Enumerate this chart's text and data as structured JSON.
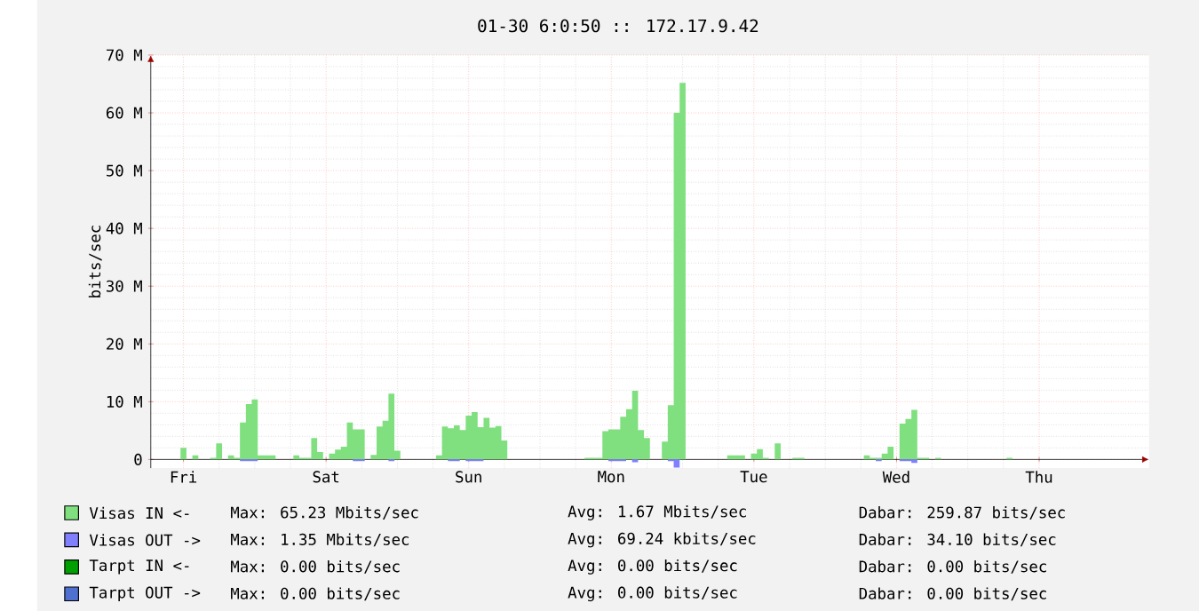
{
  "chart_data": {
    "type": "area",
    "title": "01-30 6:0:50 :: 172.17.9.42",
    "ylabel": "bits/sec",
    "categories": [
      null,
      null,
      null,
      null,
      null,
      "Fri",
      null,
      null,
      null,
      null,
      null,
      null,
      null,
      null,
      null,
      null,
      null,
      null,
      null,
      null,
      null,
      null,
      null,
      null,
      null,
      null,
      null,
      null,
      null,
      "Sat",
      null,
      null,
      null,
      null,
      null,
      null,
      null,
      null,
      null,
      null,
      null,
      null,
      null,
      null,
      null,
      null,
      null,
      null,
      null,
      null,
      null,
      null,
      null,
      "Sun",
      null,
      null,
      null,
      null,
      null,
      null,
      null,
      null,
      null,
      null,
      null,
      null,
      null,
      null,
      null,
      null,
      null,
      null,
      null,
      null,
      null,
      null,
      null,
      "Mon",
      null,
      null,
      null,
      null,
      null,
      null,
      null,
      null,
      null,
      null,
      null,
      null,
      null,
      null,
      null,
      null,
      null,
      null,
      null,
      null,
      null,
      null,
      null,
      "Tue",
      null,
      null,
      null,
      null,
      null,
      null,
      null,
      null,
      null,
      null,
      null,
      null,
      null,
      null,
      null,
      null,
      null,
      null,
      null,
      null,
      null,
      null,
      null,
      "Wed",
      null,
      null,
      null,
      null,
      null,
      null,
      null,
      null,
      null,
      null,
      null,
      null,
      null,
      null,
      null,
      null,
      null,
      null,
      null,
      null,
      null,
      null,
      null,
      "Thu",
      null,
      null,
      null,
      null,
      null,
      null,
      null,
      null,
      null,
      null,
      null,
      null,
      null,
      null,
      null,
      null,
      null,
      null
    ],
    "ylim": [
      -1.5,
      70
    ],
    "yticks": [
      0,
      {
        "value": 10,
        "label": "10 M"
      },
      {
        "value": 20,
        "label": "20 M"
      },
      {
        "value": 30,
        "label": "30 M"
      },
      {
        "value": 40,
        "label": "40 M"
      },
      {
        "value": 50,
        "label": "50 M"
      },
      {
        "value": 60,
        "label": "60 M"
      },
      {
        "value": 70,
        "label": "70 M"
      }
    ],
    "grid": true,
    "legend": "bottom",
    "series": [
      {
        "name": "Visas IN  <-",
        "color": "#80e080",
        "values": [
          0,
          0,
          0,
          0,
          0,
          2.0,
          0,
          0.7,
          0,
          0,
          0.3,
          2.8,
          0,
          0.7,
          0.3,
          6.4,
          9.6,
          10.4,
          0.7,
          0.7,
          0.7,
          0,
          0,
          0,
          0.7,
          0.3,
          0.3,
          3.7,
          1.3,
          0,
          1.0,
          1.7,
          2.2,
          6.4,
          5.2,
          5.2,
          0,
          0.8,
          5.7,
          6.7,
          11.4,
          1.5,
          0,
          0,
          0,
          0,
          0,
          0,
          0.7,
          5.7,
          5.4,
          5.9,
          5.1,
          7.6,
          8.2,
          5.6,
          7.2,
          5.5,
          5.8,
          3.3,
          0,
          0,
          0,
          0,
          0,
          0,
          0,
          0,
          0,
          0,
          0,
          0,
          0,
          0.3,
          0.3,
          0.3,
          4.9,
          5.2,
          5.2,
          7.4,
          8.7,
          11.9,
          5.1,
          3.7,
          0,
          0,
          3.1,
          9.4,
          60.0,
          65.2,
          0,
          0,
          0,
          0,
          0,
          0,
          0,
          0.7,
          0.7,
          0.7,
          0,
          1.0,
          1.8,
          0.3,
          0,
          2.8,
          0,
          0,
          0.3,
          0.3,
          0,
          0,
          0,
          0,
          0,
          0,
          0,
          0,
          0,
          0,
          0.7,
          0.3,
          0.3,
          1.0,
          2.2,
          0,
          6.2,
          7.0,
          8.6,
          0.3,
          0.3,
          0,
          0.3,
          0,
          0,
          0,
          0,
          0,
          0,
          0,
          0,
          0,
          0,
          0,
          0.3,
          0,
          0,
          0,
          0,
          0,
          0,
          0,
          0,
          0,
          0,
          0,
          0,
          0,
          0,
          0,
          0,
          0,
          0,
          0,
          0,
          0,
          0,
          0
        ]
      },
      {
        "name": "Visas OUT ->",
        "color": "#8080ff",
        "values": [
          0,
          0,
          0,
          0,
          0,
          0,
          0,
          0,
          0,
          0,
          0,
          0,
          0,
          0,
          0,
          -0.3,
          -0.3,
          -0.3,
          0,
          0,
          0,
          0,
          0,
          0,
          0,
          0,
          0,
          0,
          0,
          0,
          0,
          0,
          0,
          0,
          -0.3,
          -0.3,
          0,
          0,
          0,
          0,
          -0.3,
          0,
          0,
          0,
          0,
          0,
          0,
          0,
          0,
          0,
          -0.3,
          -0.3,
          0,
          -0.3,
          -0.3,
          -0.3,
          0,
          0,
          0,
          0,
          0,
          0,
          0,
          0,
          0,
          0,
          0,
          0,
          0,
          0,
          0,
          0,
          0,
          0,
          0,
          0,
          0,
          -0.3,
          -0.3,
          -0.3,
          0,
          -0.5,
          0,
          0,
          0,
          0,
          0,
          -0.3,
          -1.4,
          0,
          0,
          0,
          0,
          0,
          0,
          0,
          0,
          0,
          0,
          0,
          0,
          0,
          0,
          0,
          0,
          0,
          0,
          0,
          0,
          0,
          0,
          0,
          0,
          0,
          0,
          0,
          0,
          0,
          0,
          0,
          0,
          0,
          -0.3,
          0,
          0,
          0,
          -0.3,
          -0.3,
          -0.6,
          0,
          0,
          0,
          0,
          0,
          0,
          0,
          0,
          0,
          0,
          0,
          0,
          0,
          0,
          0,
          0,
          0,
          0,
          0,
          0,
          0,
          0,
          0,
          0,
          0,
          0,
          0,
          0,
          0,
          0,
          0,
          0,
          0,
          0,
          0,
          0,
          0,
          0,
          0
        ]
      },
      {
        "name": "Tarpt IN  <-",
        "color": "#00a000",
        "values": [
          null,
          null,
          null,
          null,
          null,
          null,
          null,
          null,
          null,
          null,
          null,
          null,
          null,
          null,
          null,
          null,
          null,
          null,
          null,
          null,
          null,
          null,
          null,
          null,
          null,
          null,
          null,
          null,
          null,
          null,
          null,
          null,
          null,
          null,
          null,
          null,
          null,
          null,
          null,
          null,
          null,
          null,
          null,
          null,
          null,
          null,
          null,
          null,
          null,
          null,
          null,
          null,
          null,
          null,
          null,
          null,
          null,
          null,
          null,
          null,
          null,
          null,
          null,
          null,
          null,
          null,
          null,
          null,
          null,
          null,
          null,
          null,
          null,
          null,
          null,
          null,
          null,
          null,
          null,
          null,
          null,
          null,
          null,
          null,
          null,
          null,
          null,
          null,
          null,
          null,
          null,
          null,
          null,
          null,
          null,
          null,
          null,
          null,
          null,
          null,
          null,
          null,
          null,
          null,
          null,
          null,
          null,
          null,
          null,
          null,
          null,
          null,
          null,
          null,
          null,
          null,
          null,
          null,
          null,
          null,
          null,
          null,
          null,
          null,
          null,
          null,
          null,
          null,
          null,
          null,
          null,
          null,
          null,
          null,
          null,
          null,
          null,
          null,
          null,
          null,
          null,
          null,
          null,
          null,
          null,
          null,
          null,
          null,
          null,
          null,
          null,
          null,
          null,
          null,
          null,
          null,
          null,
          null,
          null,
          null,
          null,
          null,
          null,
          null,
          null,
          null,
          null,
          null
        ]
      },
      {
        "name": "Tarpt OUT ->",
        "color": "#5070d0",
        "values": [
          null,
          null,
          null,
          null,
          null,
          null,
          null,
          null,
          null,
          null,
          null,
          null,
          null,
          null,
          null,
          null,
          null,
          null,
          null,
          null,
          null,
          null,
          null,
          null,
          null,
          null,
          null,
          null,
          null,
          null,
          null,
          null,
          null,
          null,
          null,
          null,
          null,
          null,
          null,
          null,
          null,
          null,
          null,
          null,
          null,
          null,
          null,
          null,
          null,
          null,
          null,
          null,
          null,
          null,
          null,
          null,
          null,
          null,
          null,
          null,
          null,
          null,
          null,
          null,
          null,
          null,
          null,
          null,
          null,
          null,
          null,
          null,
          null,
          null,
          null,
          null,
          null,
          null,
          null,
          null,
          null,
          null,
          null,
          null,
          null,
          null,
          null,
          null,
          null,
          null,
          null,
          null,
          null,
          null,
          null,
          null,
          null,
          null,
          null,
          null,
          null,
          null,
          null,
          null,
          null,
          null,
          null,
          null,
          null,
          null,
          null,
          null,
          null,
          null,
          null,
          null,
          null,
          null,
          null,
          null,
          null,
          null,
          null,
          null,
          null,
          null,
          null,
          null,
          null,
          null,
          null,
          null,
          null,
          null,
          null,
          null,
          null,
          null,
          null,
          null,
          null,
          null,
          null,
          null,
          null,
          null,
          null,
          null,
          null,
          null,
          null,
          null,
          null,
          null,
          null,
          null,
          null,
          null,
          null,
          null,
          null,
          null,
          null,
          null,
          null,
          null,
          null,
          null
        ]
      }
    ],
    "annotations": [
      "Max: 65.23 Mbits/sec",
      "Avg: 1.67 Mbits/sec",
      "Dabar: 259.87 bits/sec",
      "Max: 1.35 Mbits/sec",
      "Avg: 69.24 kbits/sec",
      "Dabar: 34.10 bits/sec",
      "Max: 0.00 bits/sec",
      "Avg: 0.00 bits/sec",
      "Dabar: 0.00 bits/sec",
      "Max: 0.00 bits/sec",
      "Avg: 0.00 bits/sec",
      "Dabar: 0.00 bits/sec"
    ]
  }
}
